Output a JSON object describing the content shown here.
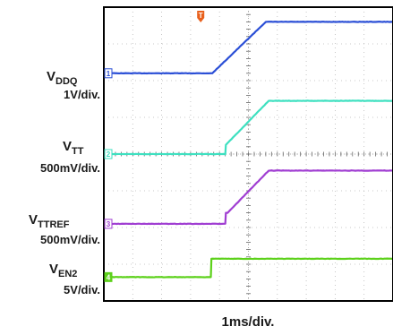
{
  "chart_data": {
    "type": "line",
    "xlabel": "1ms/div.",
    "grid": true,
    "x_divisions": 10,
    "y_divisions": 8,
    "x_unit": "div",
    "y_unit": "div",
    "xlim": [
      0,
      10
    ],
    "ylim": [
      0,
      8
    ],
    "trigger": {
      "label": "T",
      "x": 3.35,
      "color": "#e8601c"
    },
    "series": [
      {
        "name_main": "V",
        "name_sub": "DDQ",
        "scale": "1V/div.",
        "marker": "1",
        "color": "#2b4fd6",
        "x": [
          0,
          3.75,
          5.6,
          10
        ],
        "y": [
          6.2,
          6.2,
          7.6,
          7.6
        ]
      },
      {
        "name_main": "V",
        "name_sub": "TT",
        "scale": "500mV/div.",
        "marker": "2",
        "color": "#3ee0c0",
        "x": [
          0,
          4.2,
          4.22,
          5.7,
          10
        ],
        "y": [
          4.0,
          4.0,
          4.25,
          5.45,
          5.45
        ]
      },
      {
        "name_main": "V",
        "name_sub": "TTREF",
        "scale": "500mV/div.",
        "marker": "3",
        "color": "#a03ed2",
        "x": [
          0,
          4.2,
          4.22,
          4.28,
          5.7,
          10
        ],
        "y": [
          2.1,
          2.1,
          2.4,
          2.4,
          3.55,
          3.55
        ]
      },
      {
        "name_main": "V",
        "name_sub": "EN2",
        "scale": "5V/div.",
        "marker": "4",
        "color": "#5cd11a",
        "x": [
          0,
          3.7,
          3.72,
          10
        ],
        "y": [
          0.65,
          0.65,
          1.15,
          1.15
        ]
      }
    ]
  }
}
